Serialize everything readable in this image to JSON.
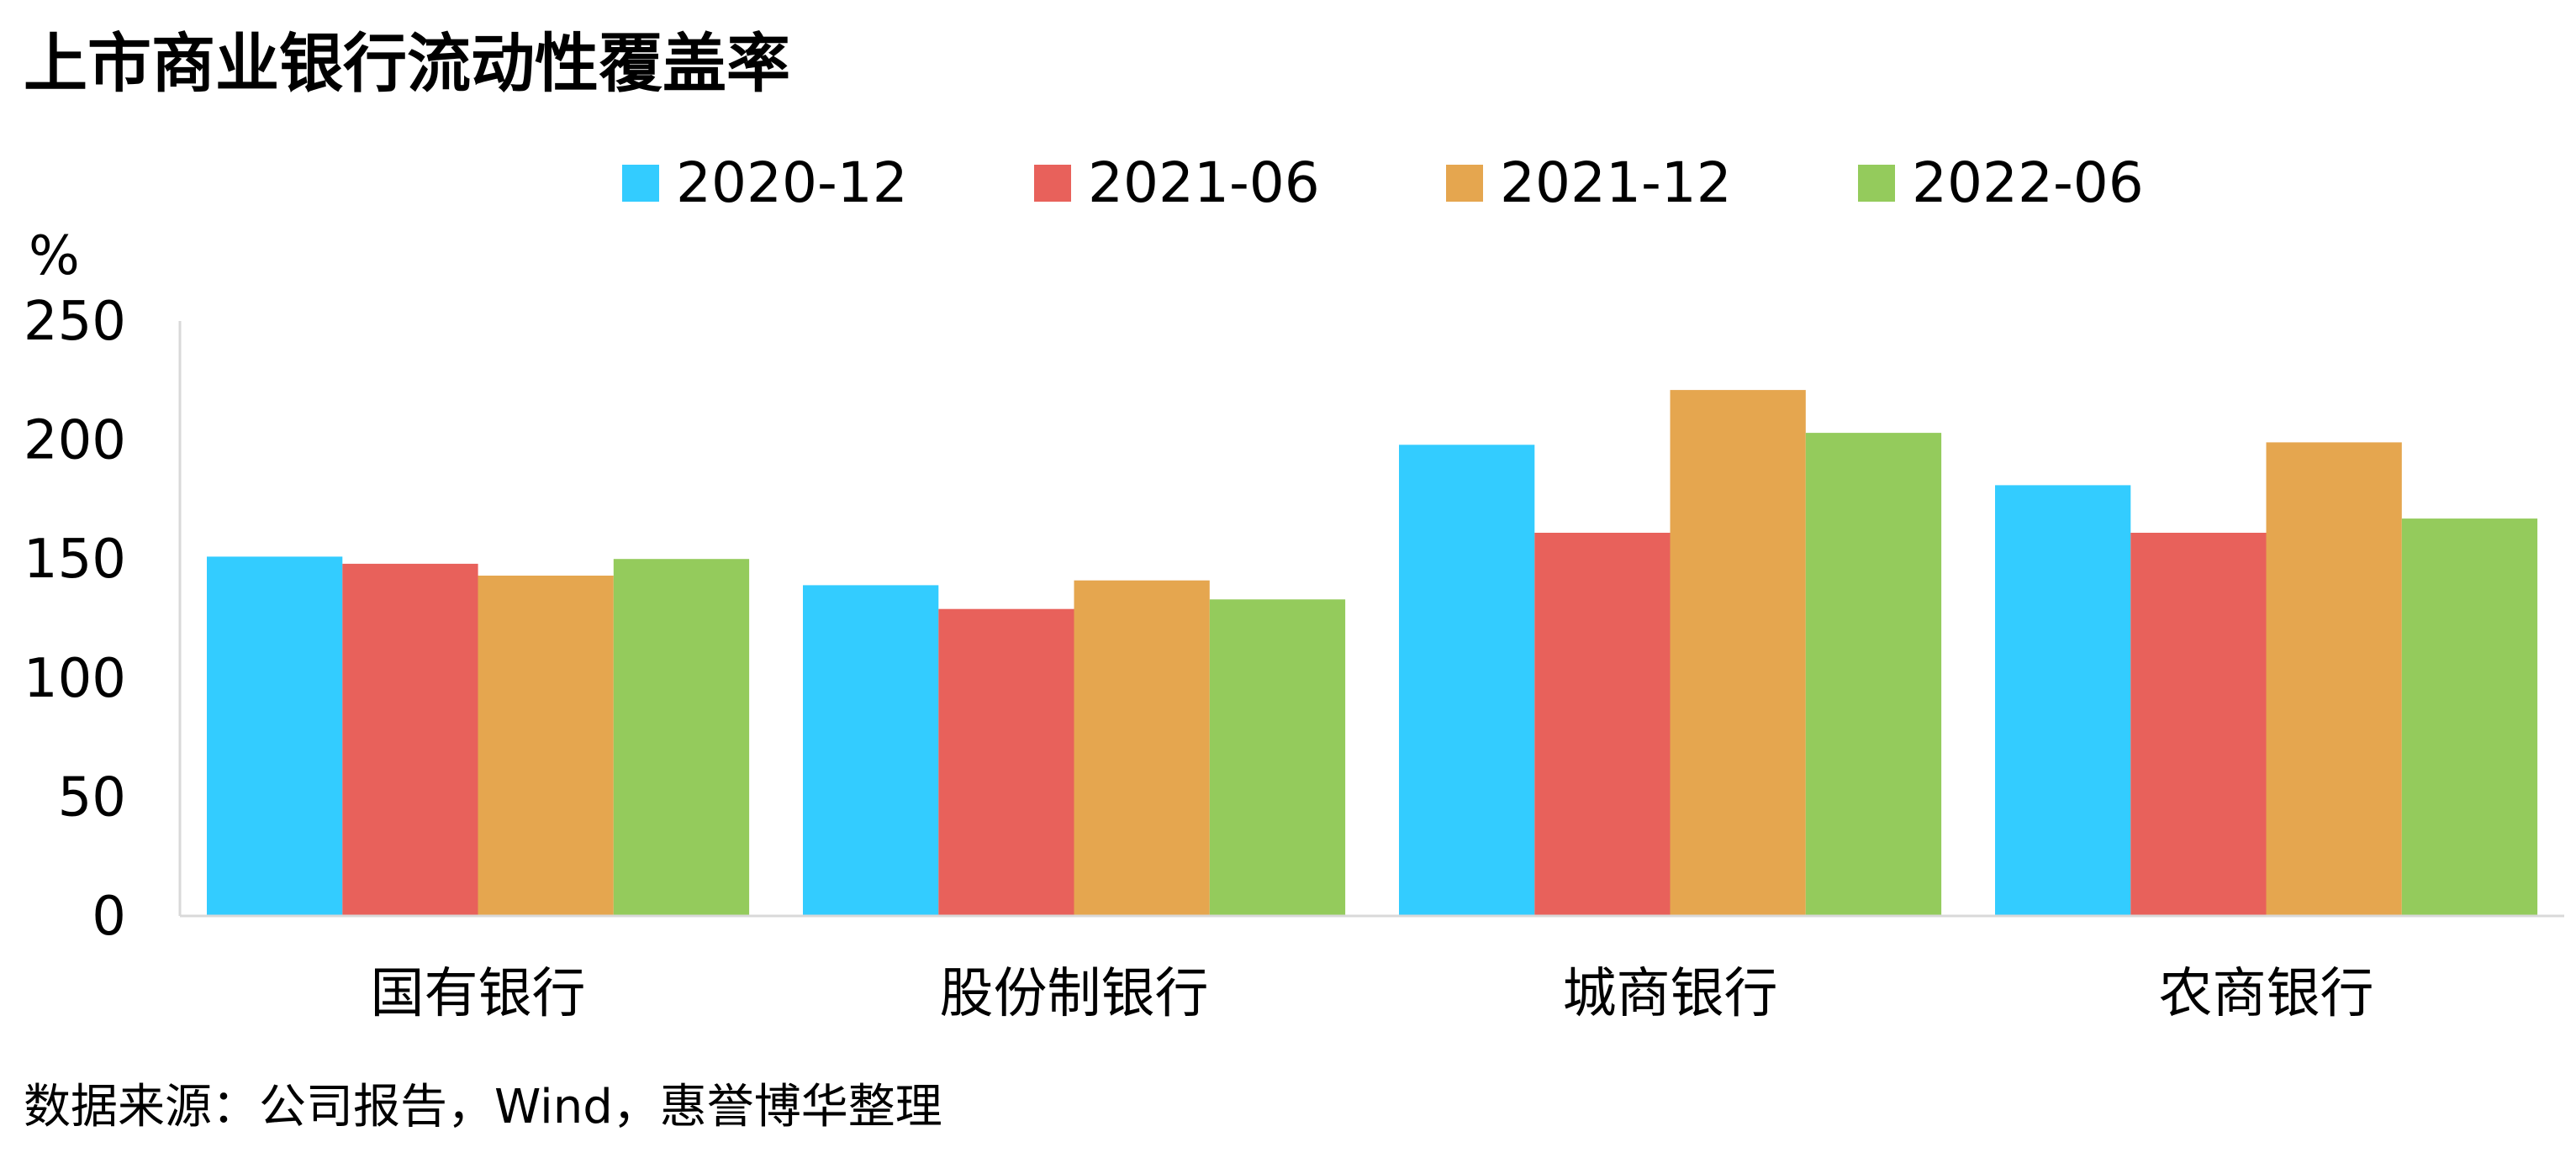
{
  "title": "上市商业银行流动性覆盖率",
  "source": "数据来源：公司报告，Wind，惠誉博华整理",
  "chart_data": {
    "type": "bar",
    "title": "上市商业银行流动性覆盖率",
    "xlabel": "",
    "ylabel": "%",
    "ylim": [
      0,
      250
    ],
    "yticks": [
      0,
      50,
      100,
      150,
      200,
      250
    ],
    "grid": false,
    "legend": "top",
    "categories": [
      "国有银行",
      "股份制银行",
      "城商银行",
      "农商银行"
    ],
    "series": [
      {
        "name": "2020-12",
        "color": "#33CCFF",
        "values": [
          151,
          139,
          198,
          181
        ]
      },
      {
        "name": "2021-06",
        "color": "#E8615B",
        "values": [
          148,
          129,
          161,
          161
        ]
      },
      {
        "name": "2021-12",
        "color": "#E5A64F",
        "values": [
          143,
          141,
          221,
          199
        ]
      },
      {
        "name": "2022-06",
        "color": "#94CB5C",
        "values": [
          150,
          133,
          203,
          167
        ]
      }
    ]
  }
}
